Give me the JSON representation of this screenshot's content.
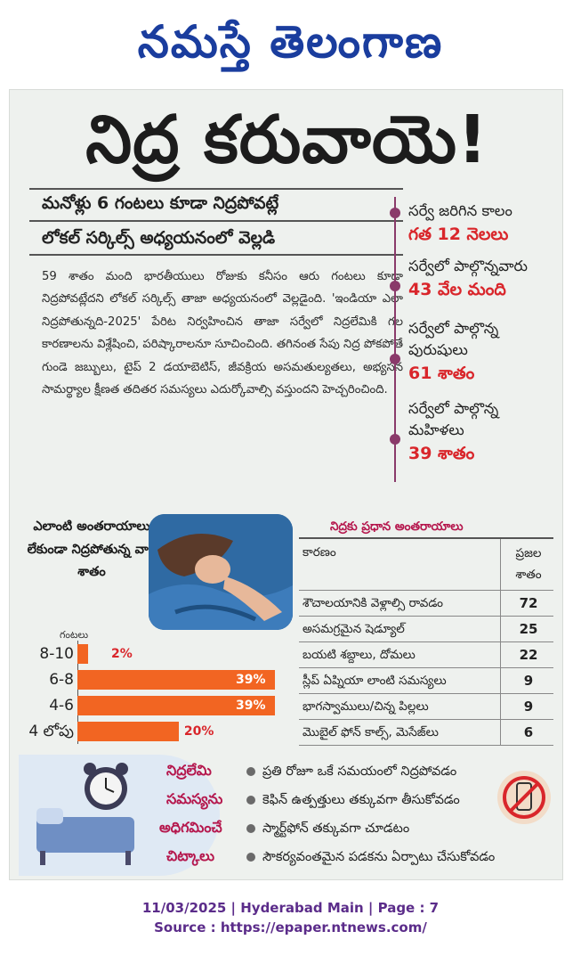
{
  "masthead": {
    "title": "నమస్తే తెలంగాణ"
  },
  "article": {
    "headline": "నిద్ర కరువాయె!",
    "subhead_1": "మనోళ్లు 6 గంటలు కూడా నిద్రపోవట్లే",
    "subhead_2": "లోకల్ సర్కిల్స్ అధ్యయనంలో వెల్లడి",
    "body": "59 శాతం మంది భారతీయులు రోజుకు కనీసం ఆరు గంటలు కూడా నిద్రపోవట్లేదని లోకల్ సర్కిల్స్ తాజా అధ్యయనంలో వెల్లడైంది. 'ఇండియా ఎలా నిద్రపోతున్నది-2025' పేరిట నిర్వహించిన తాజా సర్వేలో నిద్రలేమికి గల కారణాలను విశ్లేషించి, పరిష్కారాలనూ సూచించింది. తగినంత సేపు నిద్ర పోకపోతే గుండె జబ్బులు, టైప్ 2 డయాబెటిస్, జీవక్రియ అసమతుల్యతలు, అభ్యసన సామర్థ్యాల క్షీణత తదితర సమస్యలు ఎదుర్కోవాల్సి వస్తుందని హెచ్చరించింది."
  },
  "timeline": [
    {
      "label": "సర్వే జరిగిన కాలం",
      "value": "గత 12 నెలలు"
    },
    {
      "label": "సర్వేలో పాల్గొన్నవారు",
      "value": "43 వేల మంది"
    },
    {
      "label": "సర్వేలో పాల్గొన్న పురుషులు",
      "value": "61 శాతం"
    },
    {
      "label": "సర్వేలో పాల్గొన్న మహిళలు",
      "value": "39 శాతం"
    }
  ],
  "chart_data": {
    "type": "bar",
    "title": "ఎలాంటి అంతరాయాలు లేకుండా నిద్రపోతున్న వారి శాతం",
    "xlabel": "",
    "ylabel": "గంటలు",
    "categories": [
      "8-10",
      "6-8",
      "4-6",
      "4 లోపు"
    ],
    "values": [
      2,
      39,
      39,
      20
    ],
    "value_labels": [
      "2%",
      "39%",
      "39%",
      "20%"
    ],
    "xlim": [
      0,
      39
    ],
    "bar_color": "#f26522",
    "label_color_inside": "#ffffff",
    "label_color_outside": "#d9262b"
  },
  "table": {
    "title": "నిద్రకు ప్రధాన అంతరాయాలు",
    "col_cause": "కారణం",
    "col_percent": "ప్రజల శాతం",
    "rows": [
      {
        "cause": "శౌచాలయానికి వెళ్లాల్సి రావడం",
        "percent": "72"
      },
      {
        "cause": "అసమగ్రమైన షెడ్యూల్",
        "percent": "25"
      },
      {
        "cause": "బయటి శబ్దాలు, దోమలు",
        "percent": "22"
      },
      {
        "cause": "స్లీప్ ఏప్నియా లాంటి సమస్యలు",
        "percent": "9"
      },
      {
        "cause": "భాగస్వాములు/చిన్న పిల్లలు",
        "percent": "9"
      },
      {
        "cause": "మొబైల్ ఫోన్ కాల్స్, మెసేజ్‌లు",
        "percent": "6"
      }
    ]
  },
  "tips": {
    "heading_lines": [
      "నిద్రలేమి",
      "సమస్యను",
      "అధిగమించే",
      "చిట్కాలు"
    ],
    "items": [
      "ప్రతి రోజూ ఒకే సమయంలో నిద్రపోవడం",
      "కెఫిన్ ఉత్పత్తులు తక్కువగా తీసుకోవడం",
      "స్మార్ట్‌ఫోన్ తక్కువగా చూడటం",
      "సౌకర్యవంతమైన పడకను ఏర్పాటు చేసుకోవడం"
    ]
  },
  "footer": {
    "dateline": "11/03/2025 | Hyderabad Main | Page : 7",
    "source": "Source : https://epaper.ntnews.com/"
  },
  "colors": {
    "masthead": "#1a3d9e",
    "accent_red": "#d9262b",
    "accent_magenta": "#b5174d",
    "bar_orange": "#f26522",
    "footer_purple": "#5b2c8a"
  }
}
